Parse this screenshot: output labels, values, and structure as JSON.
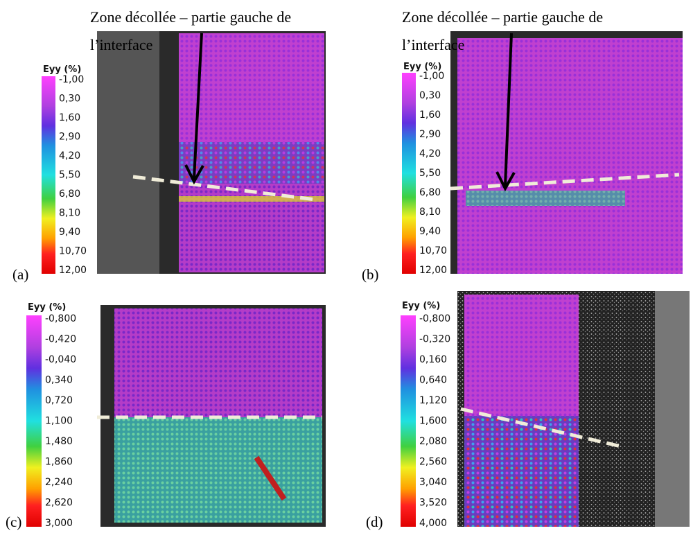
{
  "annotations": [
    {
      "line1": "Zone décollée – partie gauche de",
      "line2": "l’interface"
    },
    {
      "line1": "Zone décollée – partie gauche de",
      "line2": "l’interface"
    }
  ],
  "panels": [
    {
      "label": "(a)",
      "colorbar": {
        "title": "Eyy (%)",
        "labels": [
          "-1,00",
          "0,30",
          "1,60",
          "2,90",
          "4,20",
          "5,50",
          "6,80",
          "8,10",
          "9,40",
          "10,70",
          "12,00"
        ]
      }
    },
    {
      "label": "(b)",
      "colorbar": {
        "title": "Eyy (%)",
        "labels": [
          "-1,00",
          "0,30",
          "1,60",
          "2,90",
          "4,20",
          "5,50",
          "6,80",
          "8,10",
          "9,40",
          "10,70",
          "12,00"
        ]
      }
    },
    {
      "label": "(c)",
      "colorbar": {
        "title": "Eyy (%)",
        "labels": [
          "-0,800",
          "-0,420",
          "-0,040",
          "0,340",
          "0,720",
          "1,100",
          "1,480",
          "1,860",
          "2,240",
          "2,620",
          "3,000"
        ]
      }
    },
    {
      "label": "(d)",
      "colorbar": {
        "title": "Eyy (%)",
        "labels": [
          "-0,800",
          "-0,320",
          "0,160",
          "0,640",
          "1,120",
          "1,600",
          "2,080",
          "2,560",
          "3,040",
          "3,520",
          "4,000"
        ]
      }
    }
  ]
}
